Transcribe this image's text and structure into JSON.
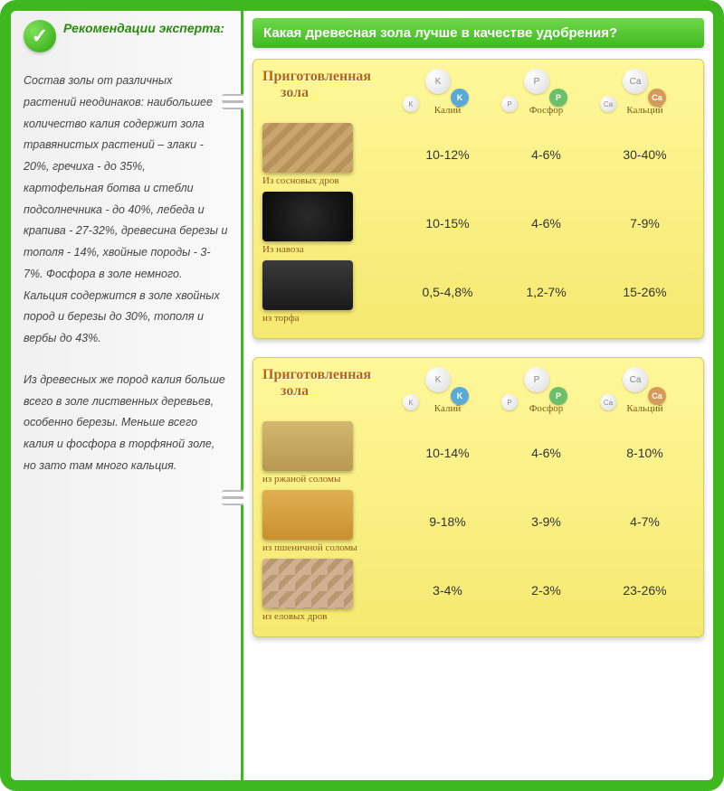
{
  "sidebar": {
    "header": "Рекомендации эксперта:",
    "para1": "Состав золы от различных растений неодинаков: наибольшее количество калия содержит зола травянистых растений – злаки - 20%, гречиха - до 35%, картофельная ботва и стебли подсолнечника - до 40%, лебеда и крапива - 27-32%, древесина березы и тополя - 14%, хвойные породы - 3-7%. Фосфора в золе немного. Кальция содержится в золе хвойных пород и березы до 30%, тополя и вербы до 43%.",
    "para2": "Из древесных же пород калия больше всего в золе лиственных деревьев, особенно березы. Меньше всего калия и фосфора в торфяной золе, но зато там много кальция."
  },
  "title": "Какая древесная зола лучше в качестве удобрения?",
  "panel_title_line1": "Приготовленная",
  "panel_title_line2": "зола",
  "columns": [
    {
      "sym": "K",
      "label": "Калий",
      "sm_class": "k-sm"
    },
    {
      "sym": "P",
      "label": "Фосфор",
      "sm_class": "p-sm"
    },
    {
      "sym": "Ca",
      "label": "Кальций",
      "sm_class": "ca-sm"
    }
  ],
  "panel1_rows": [
    {
      "caption": "Из сосновых дров",
      "img": "wood",
      "vals": [
        "10-12%",
        "4-6%",
        "30-40%"
      ]
    },
    {
      "caption": "Из навоза",
      "img": "manure",
      "vals": [
        "10-15%",
        "4-6%",
        "7-9%"
      ]
    },
    {
      "caption": "из торфа",
      "img": "peat",
      "vals": [
        "0,5-4,8%",
        "1,2-7%",
        "15-26%"
      ]
    }
  ],
  "panel2_rows": [
    {
      "caption": "из ржаной соломы",
      "img": "rye",
      "vals": [
        "10-14%",
        "4-6%",
        "8-10%"
      ]
    },
    {
      "caption": "из пшеничной соломы",
      "img": "wheat",
      "vals": [
        "9-18%",
        "3-9%",
        "4-7%"
      ]
    },
    {
      "caption": "из еловых дров",
      "img": "spruce",
      "vals": [
        "3-4%",
        "2-3%",
        "23-26%"
      ]
    }
  ]
}
